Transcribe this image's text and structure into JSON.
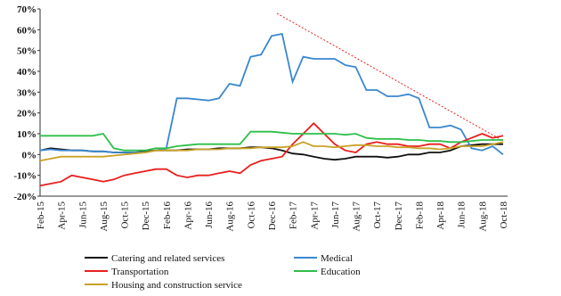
{
  "chart_data": {
    "type": "line",
    "categories": [
      "Feb-15",
      null,
      "Apr-15",
      null,
      "Jun-15",
      null,
      "Aug-15",
      null,
      "Oct-15",
      null,
      "Dec-15",
      null,
      "Feb-16",
      null,
      "Apr-16",
      null,
      "Jun-16",
      null,
      "Aug-16",
      null,
      "Oct-16",
      null,
      "Dec-16",
      null,
      "Feb-17",
      null,
      "Apr-17",
      null,
      "Jun-17",
      null,
      "Aug-17",
      null,
      "Oct-17",
      null,
      "Dec-17",
      null,
      "Feb-18",
      null,
      "Apr-18",
      null,
      "Jun-18",
      null,
      "Aug-18",
      null,
      "Oct-18"
    ],
    "series": [
      {
        "name": "Catering and related services",
        "color": "#111111",
        "values": [
          2,
          3,
          2.5,
          2,
          2,
          1.5,
          1.5,
          1,
          1,
          1,
          1.5,
          2,
          2,
          2,
          2.5,
          2.5,
          2.5,
          3,
          3,
          3,
          3.5,
          3.5,
          3,
          2,
          0.5,
          0,
          -1,
          -2,
          -2.5,
          -2,
          -1,
          -1,
          -1,
          -1.5,
          -1,
          0,
          0,
          1,
          1,
          2,
          4,
          4.5,
          5,
          5,
          5
        ]
      },
      {
        "name": "Medical",
        "color": "#3a87d0",
        "values": [
          2,
          2.5,
          2,
          2,
          2,
          1.5,
          1.5,
          1,
          1,
          1,
          1,
          2,
          3,
          27,
          27,
          26.5,
          26,
          27,
          34,
          33,
          47,
          48,
          57,
          58,
          35,
          47,
          46,
          46,
          46,
          43,
          42,
          31,
          31,
          28,
          28,
          29,
          27,
          13,
          13,
          14,
          12,
          3,
          2,
          4,
          0
        ]
      },
      {
        "name": "Transportation",
        "color": "#e8201e",
        "values": [
          -15,
          -14,
          -13,
          -10,
          -11,
          -12,
          -13,
          -12,
          -10,
          -9,
          -8,
          -7,
          -7,
          -10,
          -11,
          -10,
          -10,
          -9,
          -8,
          -9,
          -5,
          -3,
          -2,
          -1,
          5,
          10,
          15,
          10,
          5,
          2,
          1,
          5,
          6,
          5,
          5,
          4,
          4,
          5,
          5,
          3,
          6,
          8,
          10,
          8,
          9
        ]
      },
      {
        "name": "Education",
        "color": "#2fbf4a",
        "values": [
          9,
          9,
          9,
          9,
          9,
          9,
          10,
          3,
          2,
          2,
          2,
          3,
          3,
          4,
          4.5,
          5,
          5,
          5,
          5,
          5,
          11,
          11,
          11,
          10.5,
          10,
          10,
          10,
          10,
          10,
          9.5,
          10,
          8,
          7.5,
          7.5,
          7.5,
          7,
          7,
          6.5,
          6.5,
          6,
          6,
          6.5,
          7,
          7,
          7
        ]
      },
      {
        "name": "Housing and construction service",
        "color": "#c9a227",
        "values": [
          -3,
          -2,
          -1,
          -1,
          -1,
          -1,
          -1,
          -0.5,
          0,
          0.5,
          1,
          2,
          2,
          2,
          2,
          2.5,
          2.5,
          2.5,
          3,
          3,
          3,
          3.5,
          3.5,
          3.5,
          4,
          6,
          4,
          4,
          3.5,
          4,
          4.5,
          4.5,
          4,
          4,
          3.5,
          3.5,
          3,
          3,
          2.5,
          3,
          4,
          4,
          4,
          5,
          6
        ]
      }
    ],
    "ylim": [
      -20,
      70
    ],
    "yticks": [
      {
        "value": -20,
        "label": "-20%"
      },
      {
        "value": -10,
        "label": "-10%"
      },
      {
        "value": 0,
        "label": "0%"
      },
      {
        "value": 10,
        "label": "10%"
      },
      {
        "value": 20,
        "label": "20%"
      },
      {
        "value": 30,
        "label": "30%"
      },
      {
        "value": 40,
        "label": "40%"
      },
      {
        "value": 50,
        "label": "50%"
      },
      {
        "value": 60,
        "label": "60%"
      },
      {
        "value": 70,
        "label": "70%"
      }
    ],
    "grid": false
  }
}
